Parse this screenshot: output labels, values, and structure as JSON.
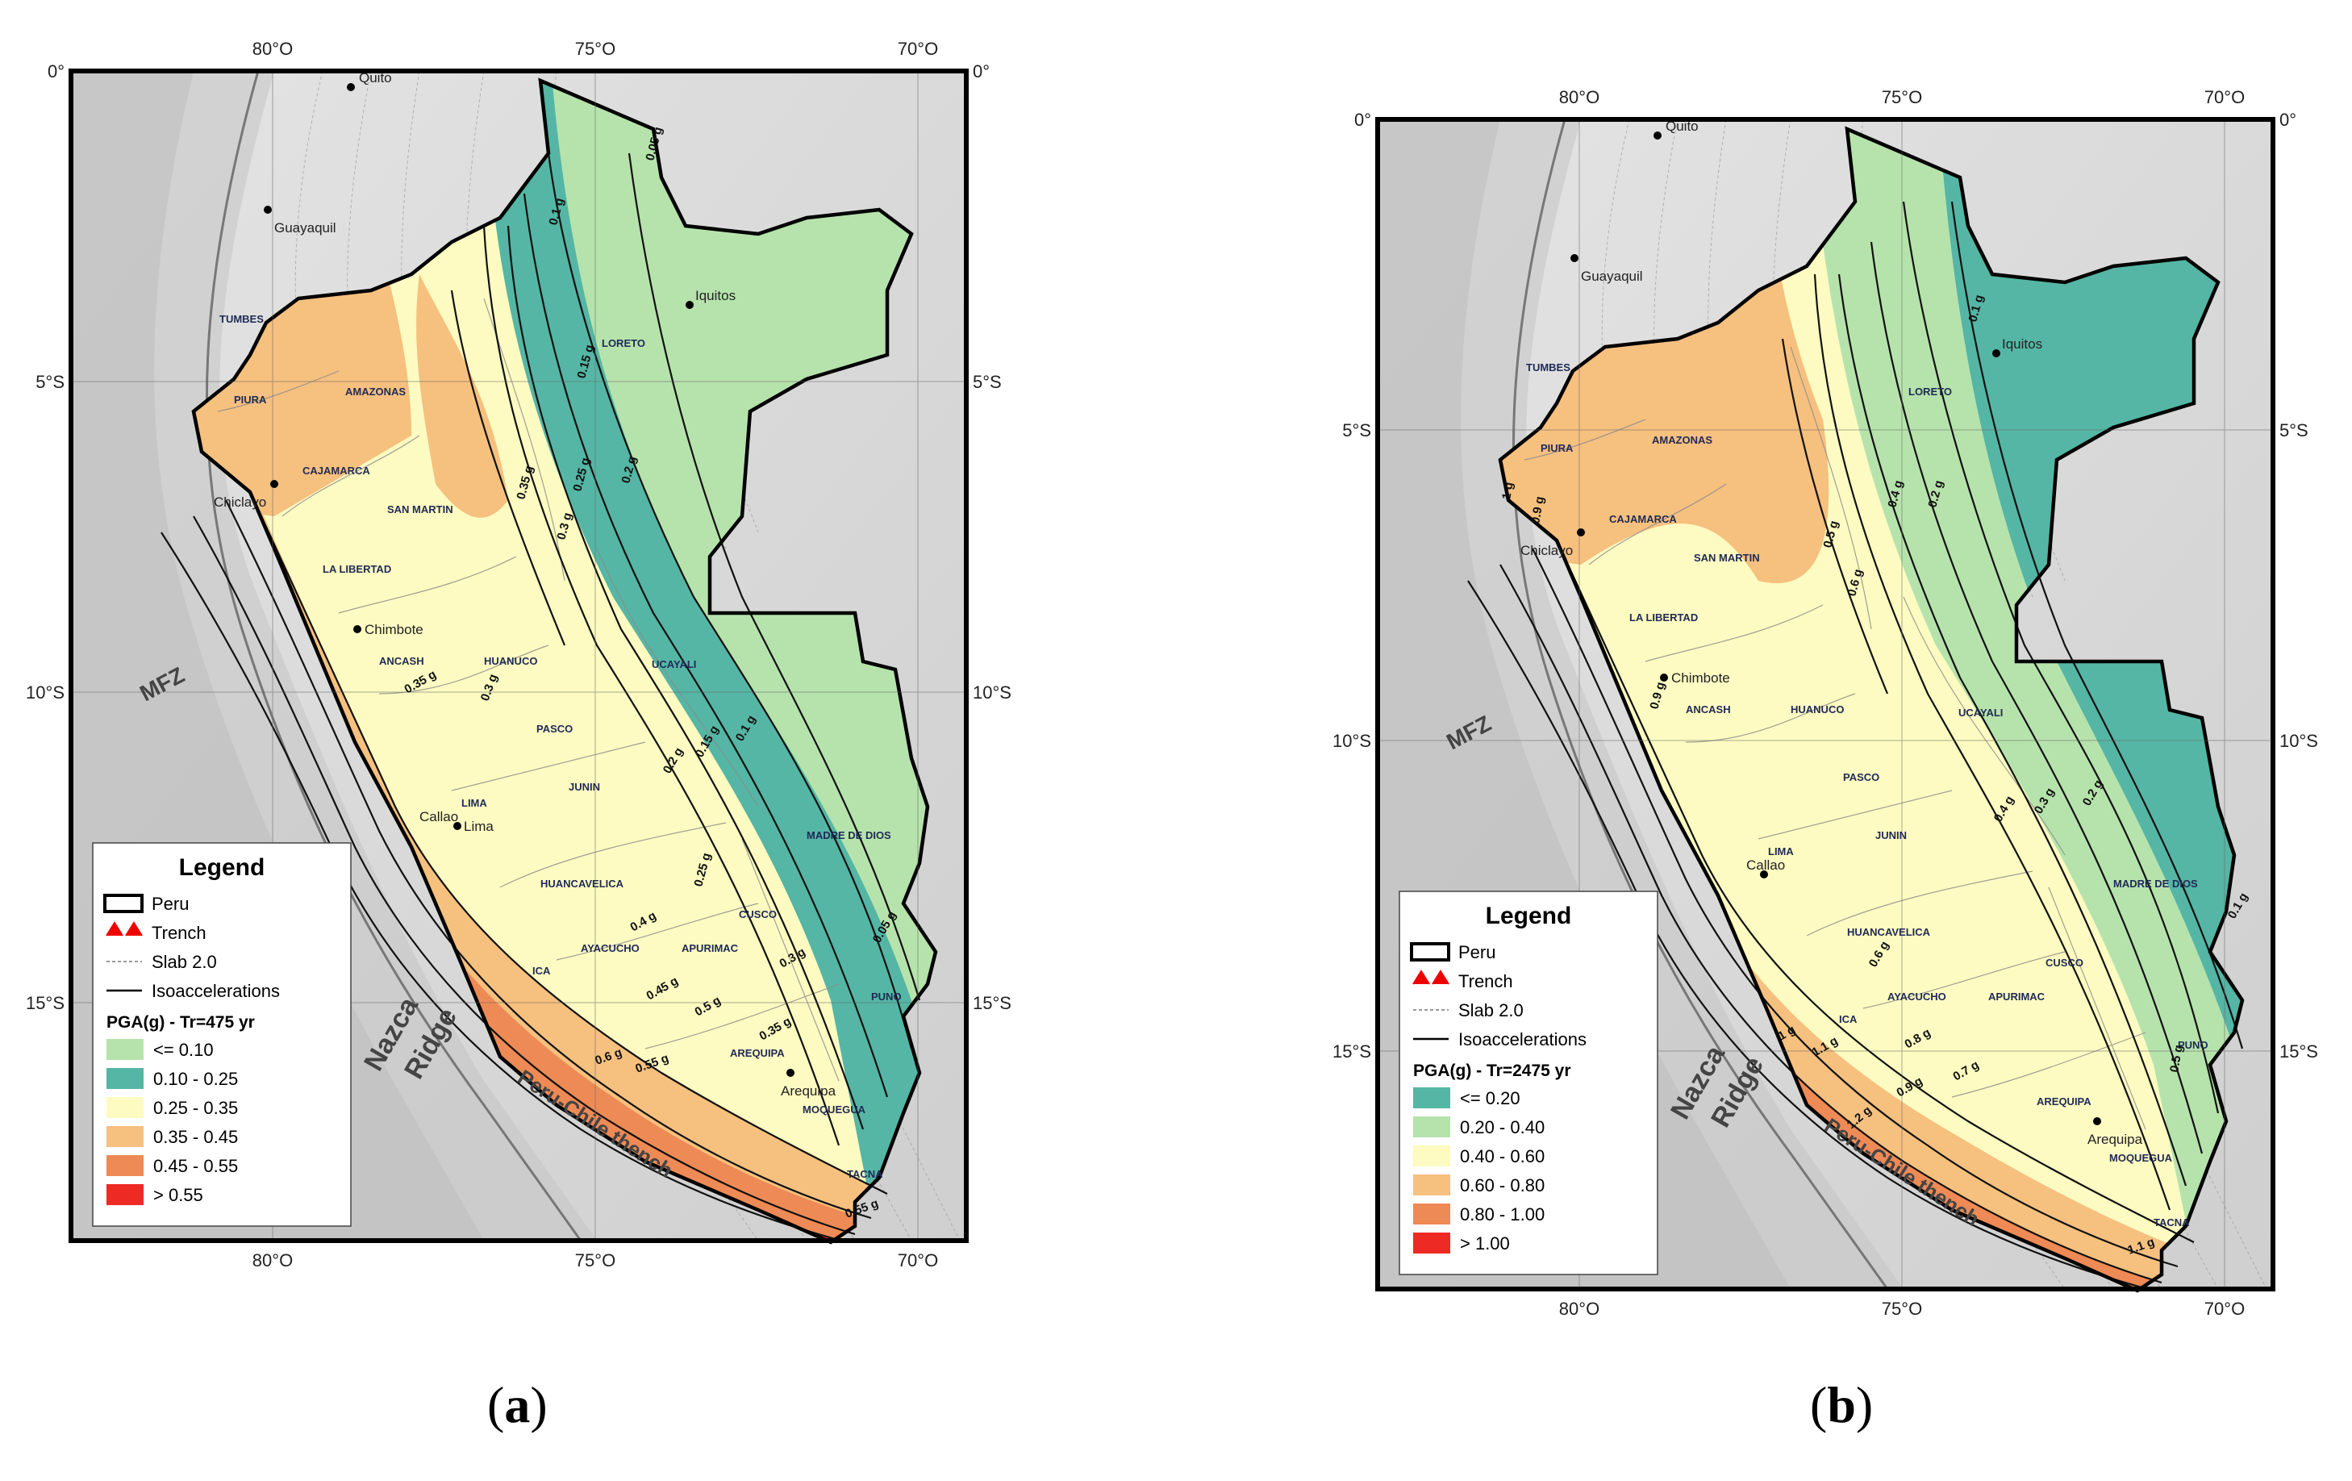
{
  "colors": {
    "c_le010": "#b6e3ac",
    "c_010_025": "#55b6a5",
    "c_025_035": "#fdfbc1",
    "c_035_045": "#f6c07f",
    "c_045_055": "#ee8a55",
    "c_gt055": "#ee2a24",
    "terrain": "#d8d8d8",
    "ocean": "#c9c9c9"
  },
  "maps": [
    {
      "id": "a",
      "caption_open": "(",
      "caption_letter": "a",
      "caption_close": ")",
      "top_lon_labels": [
        "80°O",
        "75°O",
        "70°O"
      ],
      "bottom_lon_labels": [
        "80°O",
        "75°O",
        "70°O"
      ],
      "left_lat_labels": [
        "0°",
        "5°S",
        "10°S",
        "15°S"
      ],
      "right_lat_labels": [
        "0°",
        "5°S",
        "10°S",
        "15°S"
      ],
      "cities": [
        "Quito",
        "Guayaquil",
        "Iquitos",
        "Chiclayo",
        "Chimbote",
        "Callao",
        "Lima",
        "Arequipa"
      ],
      "departments": [
        "TUMBES",
        "PIURA",
        "AMAZONAS",
        "LORETO",
        "CAJAMARCA",
        "SAN MARTIN",
        "LA LIBERTAD",
        "ANCASH",
        "HUANUCO",
        "UCAYALI",
        "PASCO",
        "JUNIN",
        "LIMA",
        "MADRE DE DIOS",
        "HUANCAVELICA",
        "CUSCO",
        "ICA",
        "AYACUCHO",
        "APURIMAC",
        "PUNO",
        "AREQUIPA",
        "MOQUEGUA",
        "TACNA"
      ],
      "isolines": [
        "0.05 g",
        "0.1 g",
        "0.15 g",
        "0.2 g",
        "0.25 g",
        "0.3 g",
        "0.35 g",
        "0.4 g",
        "0.45 g",
        "0.5 g",
        "0.55 g",
        "0.6 g"
      ],
      "features": [
        "MFZ",
        "Nazca",
        "Ridge",
        "Peru-Chile thench"
      ],
      "legend": {
        "title": "Legend",
        "items": [
          "Peru",
          "Trench",
          "Slab 2.0",
          "Isoaccelerations"
        ],
        "pga_title": "PGA(g) - Tr=475 yr",
        "classes": [
          {
            "label": "<= 0.10",
            "color": "#b6e3ac"
          },
          {
            "label": "0.10 - 0.25",
            "color": "#55b6a5"
          },
          {
            "label": "0.25 - 0.35",
            "color": "#fdfbc1"
          },
          {
            "label": "0.35 - 0.45",
            "color": "#f6c07f"
          },
          {
            "label": "0.45 - 0.55",
            "color": "#ee8a55"
          },
          {
            "label": "> 0.55",
            "color": "#ee2a24"
          }
        ]
      }
    },
    {
      "id": "b",
      "caption_open": "(",
      "caption_letter": "b",
      "caption_close": ")",
      "top_lon_labels": [
        "80°O",
        "75°O",
        "70°O"
      ],
      "bottom_lon_labels": [
        "80°O",
        "75°O",
        "70°O"
      ],
      "left_lat_labels": [
        "0°",
        "5°S",
        "10°S",
        "15°S"
      ],
      "right_lat_labels": [
        "0°",
        "5°S",
        "10°S",
        "15°S"
      ],
      "cities": [
        "Quito",
        "Guayaquil",
        "Iquitos",
        "Chiclayo",
        "Chimbote",
        "Callao",
        "Arequipa"
      ],
      "departments": [
        "TUMBES",
        "PIURA",
        "AMAZONAS",
        "LORETO",
        "CAJAMARCA",
        "SAN MARTIN",
        "LA LIBERTAD",
        "ANCASH",
        "HUANUCO",
        "UCAYALI",
        "PASCO",
        "JUNIN",
        "LIMA",
        "MADRE DE DIOS",
        "HUANCAVELICA",
        "CUSCO",
        "ICA",
        "AYACUCHO",
        "APURIMAC",
        "PUNO",
        "AREQUIPA",
        "MOQUEGUA",
        "TACNA"
      ],
      "isolines": [
        "0.1 g",
        "0.2 g",
        "0.3 g",
        "0.4 g",
        "0.5 g",
        "0.6 g",
        "0.7 g",
        "0.8 g",
        "0.9 g",
        "1 g",
        "1.1 g",
        "1.2 g"
      ],
      "features": [
        "MFZ",
        "Nazca",
        "Ridge",
        "Peru-Chile thench"
      ],
      "legend": {
        "title": "Legend",
        "items": [
          "Peru",
          "Trench",
          "Slab 2.0",
          "Isoaccelerations"
        ],
        "pga_title": "PGA(g) - Tr=2475 yr",
        "classes": [
          {
            "label": "<= 0.20",
            "color": "#55b6a5"
          },
          {
            "label": "0.20 - 0.40",
            "color": "#b6e3ac"
          },
          {
            "label": "0.40 - 0.60",
            "color": "#fdfbc1"
          },
          {
            "label": "0.60 - 0.80",
            "color": "#f6c07f"
          },
          {
            "label": "0.80 - 1.00",
            "color": "#ee8a55"
          },
          {
            "label": "> 1.00",
            "color": "#ee2a24"
          }
        ]
      }
    }
  ]
}
